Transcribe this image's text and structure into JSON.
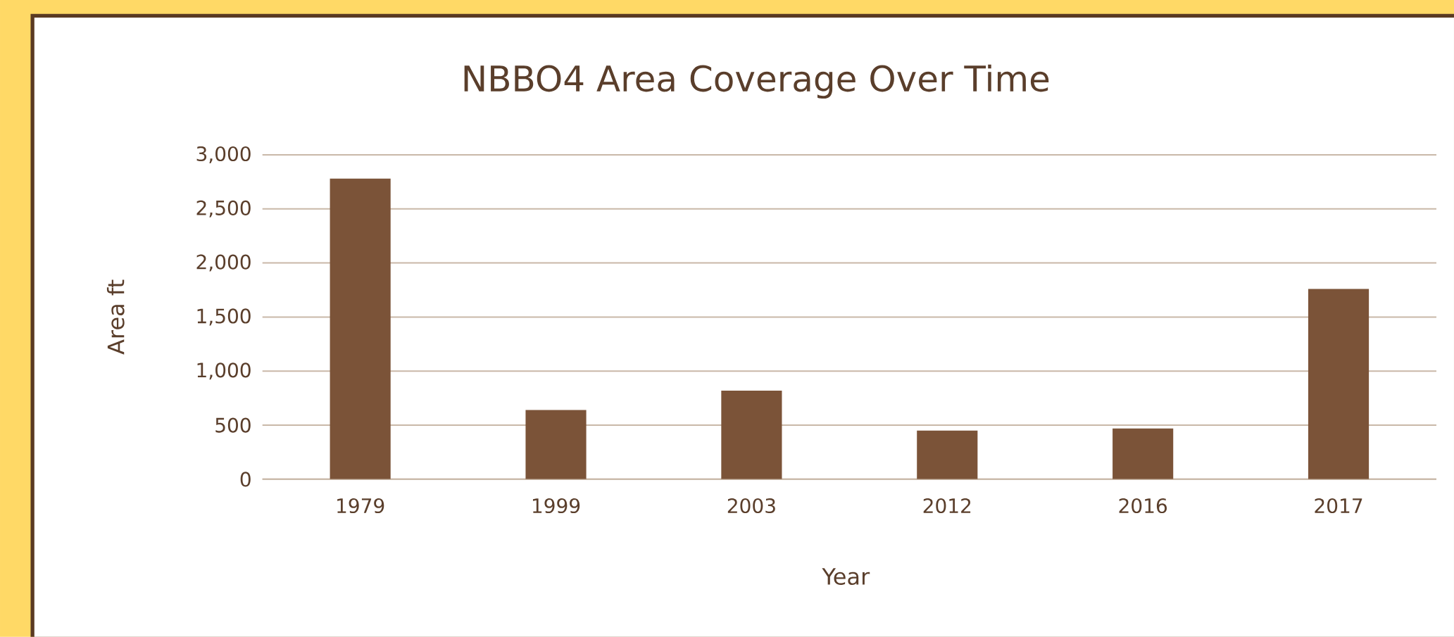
{
  "chart_data": {
    "type": "bar",
    "title": "NBBO4  Area Coverage Over Time",
    "xlabel": "Year",
    "ylabel": "Area ft",
    "categories": [
      "1979",
      "1999",
      "2003",
      "2012",
      "2016",
      "2017"
    ],
    "values": [
      2780,
      640,
      820,
      450,
      470,
      1760
    ],
    "color": "#7b5338",
    "ylim": [
      0,
      3000
    ],
    "yticks": [
      {
        "value": 0,
        "label": "0"
      },
      {
        "value": 500,
        "label": "500"
      },
      {
        "value": 1000,
        "label": "1,000"
      },
      {
        "value": 1500,
        "label": "1,500"
      },
      {
        "value": 2000,
        "label": "2,000"
      },
      {
        "value": 2500,
        "label": "2,500"
      },
      {
        "value": 3000,
        "label": "3,000"
      }
    ],
    "grid": "y"
  }
}
